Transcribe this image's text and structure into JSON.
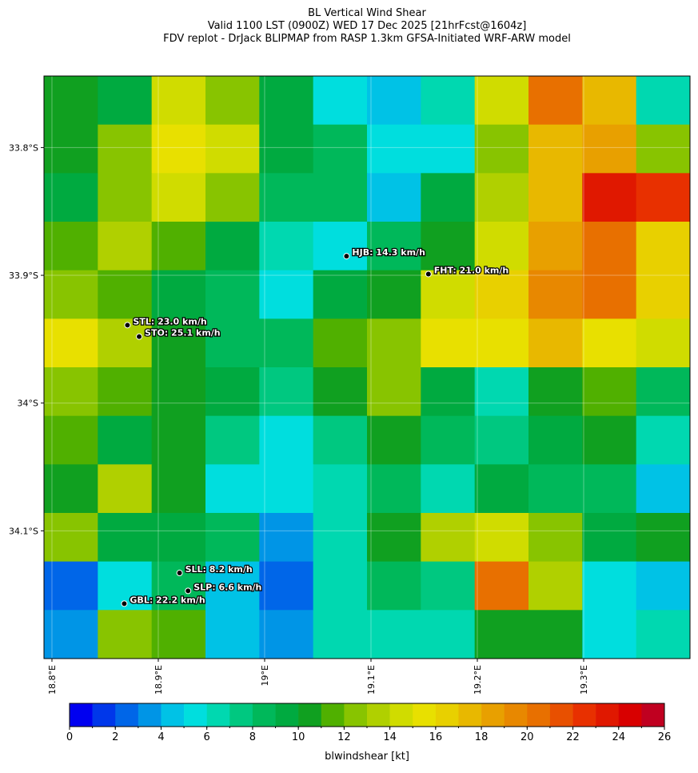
{
  "chart_data": {
    "type": "heatmap",
    "title": "BL Vertical Wind Shear",
    "subtitle": "Valid 1100 LST (0900Z) WED 17 Dec 2025 [21hrFcst@1604z]",
    "source": "FDV replot - DrJack BLIPMAP from RASP 1.3km GFSA-Initiated WRF-ARW model",
    "xlim": [
      18.7925,
      19.4
    ],
    "ylim": [
      -34.2,
      -33.744
    ],
    "xticks": [
      {
        "value": 18.8,
        "label": "18.8°E"
      },
      {
        "value": 18.9,
        "label": "18.9°E"
      },
      {
        "value": 19.0,
        "label": "19°E"
      },
      {
        "value": 19.1,
        "label": "19.1°E"
      },
      {
        "value": 19.2,
        "label": "19.2°E"
      },
      {
        "value": 19.3,
        "label": "19.3°E"
      }
    ],
    "yticks": [
      {
        "value": -33.8,
        "label": "33.8°S"
      },
      {
        "value": -33.9,
        "label": "33.9°S"
      },
      {
        "value": -34.0,
        "label": "34°S"
      },
      {
        "value": -34.1,
        "label": "34.1°S"
      }
    ],
    "z": [
      [
        10,
        9,
        14,
        12,
        9,
        5,
        4,
        6,
        14,
        20,
        17,
        6
      ],
      [
        10,
        12,
        15,
        14,
        9,
        8,
        5,
        5,
        12,
        17,
        18,
        12
      ],
      [
        9,
        12,
        14,
        12,
        8,
        8,
        4,
        9,
        13,
        17,
        23,
        22
      ],
      [
        11,
        13,
        11,
        9,
        6,
        5,
        8,
        10,
        14,
        18,
        20,
        16
      ],
      [
        12,
        11,
        9,
        8,
        5,
        9,
        10,
        14,
        16,
        19,
        20,
        16
      ],
      [
        15,
        13,
        10,
        8,
        8,
        11,
        12,
        15,
        15,
        17,
        15,
        14
      ],
      [
        12,
        11,
        10,
        9,
        7,
        10,
        12,
        9,
        6,
        10,
        11,
        8
      ],
      [
        11,
        9,
        10,
        7,
        5,
        7,
        10,
        8,
        7,
        9,
        10,
        6
      ],
      [
        10,
        13,
        10,
        5,
        5,
        6,
        8,
        6,
        9,
        8,
        8,
        4
      ],
      [
        12,
        9,
        9,
        8,
        3,
        6,
        10,
        13,
        14,
        12,
        9,
        10
      ],
      [
        2,
        5,
        8,
        4,
        2,
        6,
        8,
        7,
        20,
        13,
        5,
        4
      ],
      [
        3,
        12,
        11,
        4,
        3,
        6,
        6,
        6,
        10,
        10,
        5,
        6
      ]
    ],
    "stations": [
      {
        "label": "HJB: 14.3 km/h",
        "lon": 19.077,
        "lat": -33.885
      },
      {
        "label": "FHT: 21.0 km/h",
        "lon": 19.154,
        "lat": -33.899
      },
      {
        "label": "STL: 23.0 km/h",
        "lon": 18.871,
        "lat": -33.939
      },
      {
        "label": "STO: 25.1 km/h",
        "lon": 18.882,
        "lat": -33.948
      },
      {
        "label": "SLL: 8.2 km/h",
        "lon": 18.92,
        "lat": -34.133
      },
      {
        "label": "SLP: 6.6 km/h",
        "lon": 18.928,
        "lat": -34.147
      },
      {
        "label": "GBL: 22.2 km/h",
        "lon": 18.868,
        "lat": -34.157
      }
    ],
    "colorbar": {
      "label": "blwindshear [kt]",
      "clim": [
        0,
        26
      ],
      "levels": [
        0,
        1,
        2,
        3,
        4,
        5,
        6,
        7,
        8,
        9,
        10,
        11,
        12,
        13,
        14,
        15,
        16,
        17,
        18,
        19,
        20,
        21,
        22,
        23,
        24,
        25,
        26
      ],
      "ticks": [
        0,
        2,
        4,
        6,
        8,
        10,
        12,
        14,
        16,
        18,
        20,
        22,
        24,
        26
      ],
      "colors": [
        "#0000f0",
        "#0037ea",
        "#0066e8",
        "#0095e6",
        "#00c2e6",
        "#00dede",
        "#00d8b0",
        "#00c880",
        "#00b85a",
        "#00aa40",
        "#10a020",
        "#50b000",
        "#88c400",
        "#b0d000",
        "#d0dc00",
        "#e8e000",
        "#e8d000",
        "#e8b800",
        "#e8a000",
        "#e88800",
        "#e87000",
        "#e85000",
        "#e83000",
        "#e01800",
        "#d80000",
        "#c00020"
      ]
    }
  }
}
